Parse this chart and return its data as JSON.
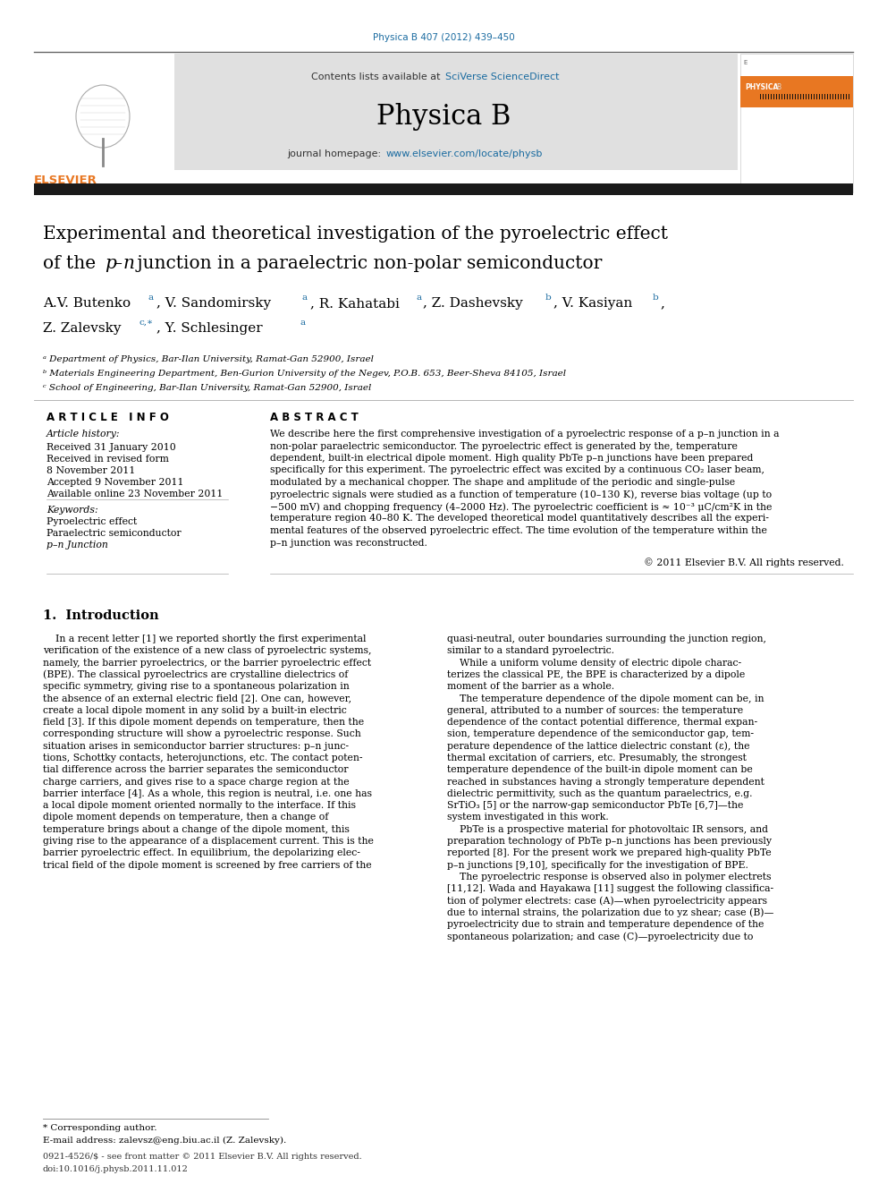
{
  "page_width": 9.92,
  "page_height": 13.23,
  "bg_color": "#ffffff",
  "header_journal_ref": "Physica B 407 (2012) 439–450",
  "header_journal_ref_color": "#1a6ba0",
  "journal_box_bg": "#e0e0e0",
  "sciverse_text": "SciVerse ScienceDirect",
  "sciverse_color": "#1a6ba0",
  "journal_name": "Physica B",
  "journal_homepage_prefix": "journal homepage: ",
  "journal_homepage_url": "www.elsevier.com/locate/physb",
  "journal_homepage_url_color": "#1a6ba0",
  "elsevier_color": "#E87722",
  "article_history_label": "Article history:",
  "received1": "Received 31 January 2010",
  "received_revised": "Received in revised form",
  "date_revised": "8 November 2011",
  "accepted": "Accepted 9 November 2011",
  "available": "Available online 23 November 2011",
  "keywords_label": "Keywords:",
  "keyword1": "Pyroelectric effect",
  "keyword2": "Paraelectric semiconductor",
  "keyword3": "p–n Junction",
  "copyright_text": "© 2011 Elsevier B.V. All rights reserved.",
  "section1_title": "1.  Introduction",
  "affil_a": "ᵃ Department of Physics, Bar-Ilan University, Ramat-Gan 52900, Israel",
  "affil_b": "ᵇ Materials Engineering Department, Ben-Gurion University of the Negev, P.O.B. 653, Beer-Sheva 84105, Israel",
  "affil_c": "ᶜ School of Engineering, Bar-Ilan University, Ramat-Gan 52900, Israel",
  "footnote_corresponding": "* Corresponding author.",
  "footnote_email": "E-mail address: zalevsz@eng.biu.ac.il (Z. Zalevsky).",
  "footer_issn": "0921-4526/$ - see front matter © 2011 Elsevier B.V. All rights reserved.",
  "footer_doi": "doi:10.1016/j.physb.2011.11.012"
}
